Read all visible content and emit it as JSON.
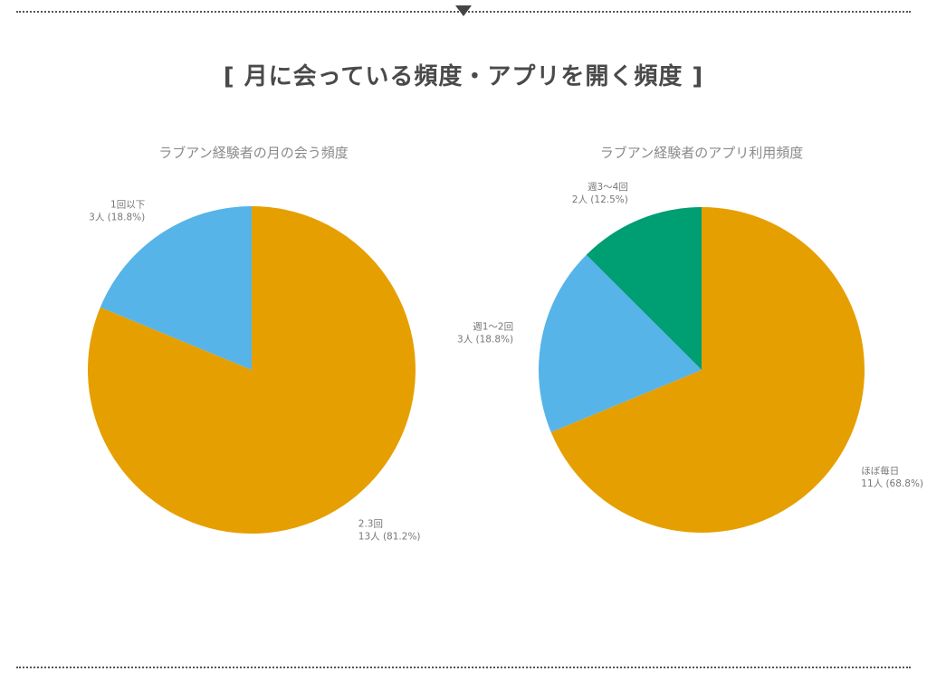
{
  "page": {
    "title": "[ 月に会っている頻度・アプリを開く頻度 ]"
  },
  "colors": {
    "orange": "#E69F00",
    "sky_blue": "#56B4E9",
    "green": "#009E73",
    "label_text": "#777777",
    "title_text": "#4a4a4a"
  },
  "chart_data": [
    {
      "type": "pie",
      "title": "ラブアン経験者の月の会う頻度",
      "unit": "人",
      "slices": [
        {
          "label": "2.3回",
          "value": 13,
          "percent": 81.2,
          "color": "#E69F00",
          "value_text": "13人 (81.2%)"
        },
        {
          "label": "1回以下",
          "value": 3,
          "percent": 18.8,
          "color": "#56B4E9",
          "value_text": "3人 (18.8%)"
        }
      ],
      "start": "12 o'clock",
      "direction": "clockwise"
    },
    {
      "type": "pie",
      "title": "ラブアン経験者のアプリ利用頻度",
      "unit": "人",
      "slices": [
        {
          "label": "ほぼ毎日",
          "value": 11,
          "percent": 68.8,
          "color": "#E69F00",
          "value_text": "11人 (68.8%)"
        },
        {
          "label": "週1〜2回",
          "value": 3,
          "percent": 18.8,
          "color": "#56B4E9",
          "value_text": "3人 (18.8%)"
        },
        {
          "label": "週3〜4回",
          "value": 2,
          "percent": 12.5,
          "color": "#009E73",
          "value_text": "2人 (12.5%)"
        }
      ],
      "start": "12 o'clock",
      "direction": "clockwise"
    }
  ]
}
